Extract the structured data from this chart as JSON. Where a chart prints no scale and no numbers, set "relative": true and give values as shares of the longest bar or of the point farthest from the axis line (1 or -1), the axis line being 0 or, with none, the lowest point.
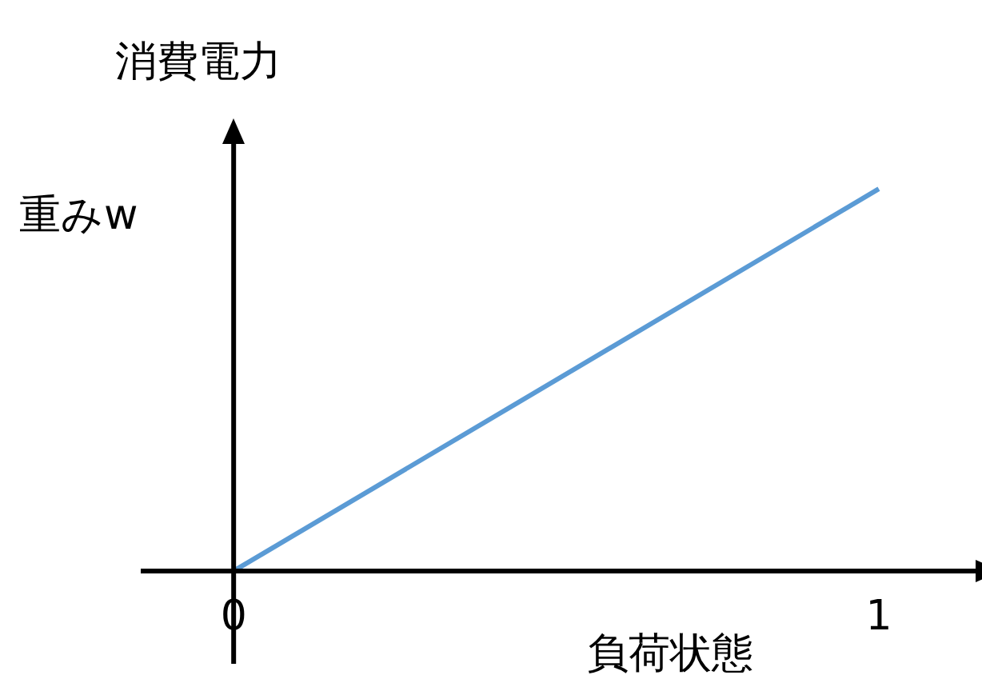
{
  "chart_data": {
    "type": "line",
    "ylabel": "消費電力",
    "xlabel": "負荷状態",
    "relative": true,
    "x": [
      0,
      1
    ],
    "series": [
      {
        "color": "#5b9bd5",
        "values": [
          0,
          1
        ]
      }
    ],
    "xlim": [
      -0.144,
      1.155
    ],
    "xticks": [
      0,
      1
    ],
    "marker": "none",
    "legend": false,
    "annotations": [
      "重みw"
    ]
  }
}
